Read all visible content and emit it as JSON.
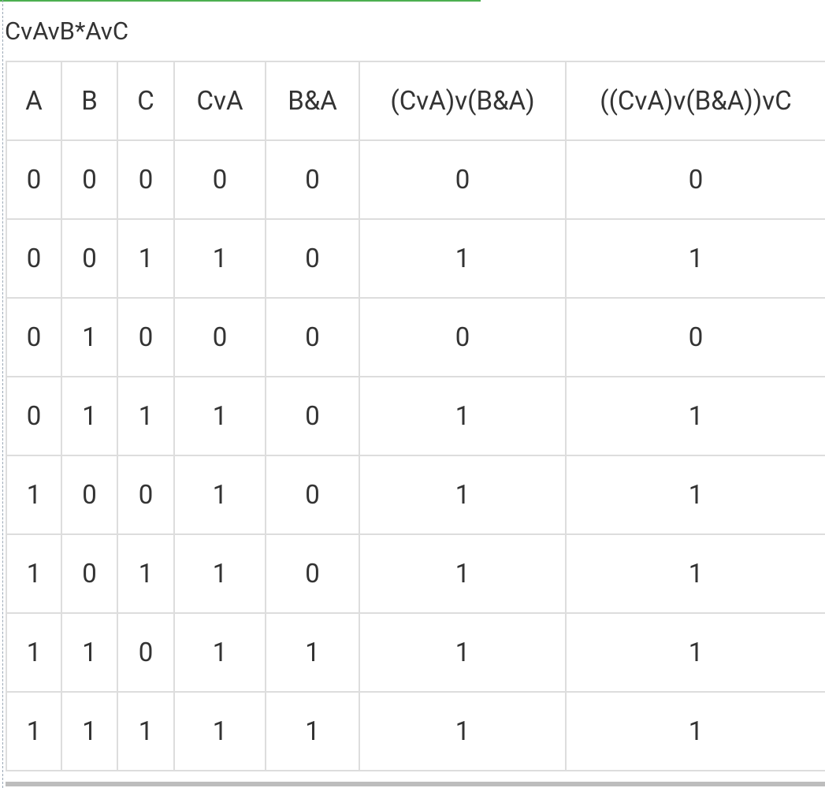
{
  "title": "CvAvB*AvC",
  "table": {
    "header": [
      "A",
      "B",
      "C",
      "CvA",
      "B&A",
      "(CvA)v(B&A)",
      "((CvA)v(B&A))vC"
    ],
    "rows": [
      [
        0,
        0,
        0,
        0,
        0,
        0,
        0
      ],
      [
        0,
        0,
        1,
        1,
        0,
        1,
        1
      ],
      [
        0,
        1,
        0,
        0,
        0,
        0,
        0
      ],
      [
        0,
        1,
        1,
        1,
        0,
        1,
        1
      ],
      [
        1,
        0,
        0,
        1,
        0,
        1,
        1
      ],
      [
        1,
        0,
        1,
        1,
        0,
        1,
        1
      ],
      [
        1,
        1,
        0,
        1,
        1,
        1,
        1
      ],
      [
        1,
        1,
        1,
        1,
        1,
        1,
        1
      ]
    ]
  }
}
